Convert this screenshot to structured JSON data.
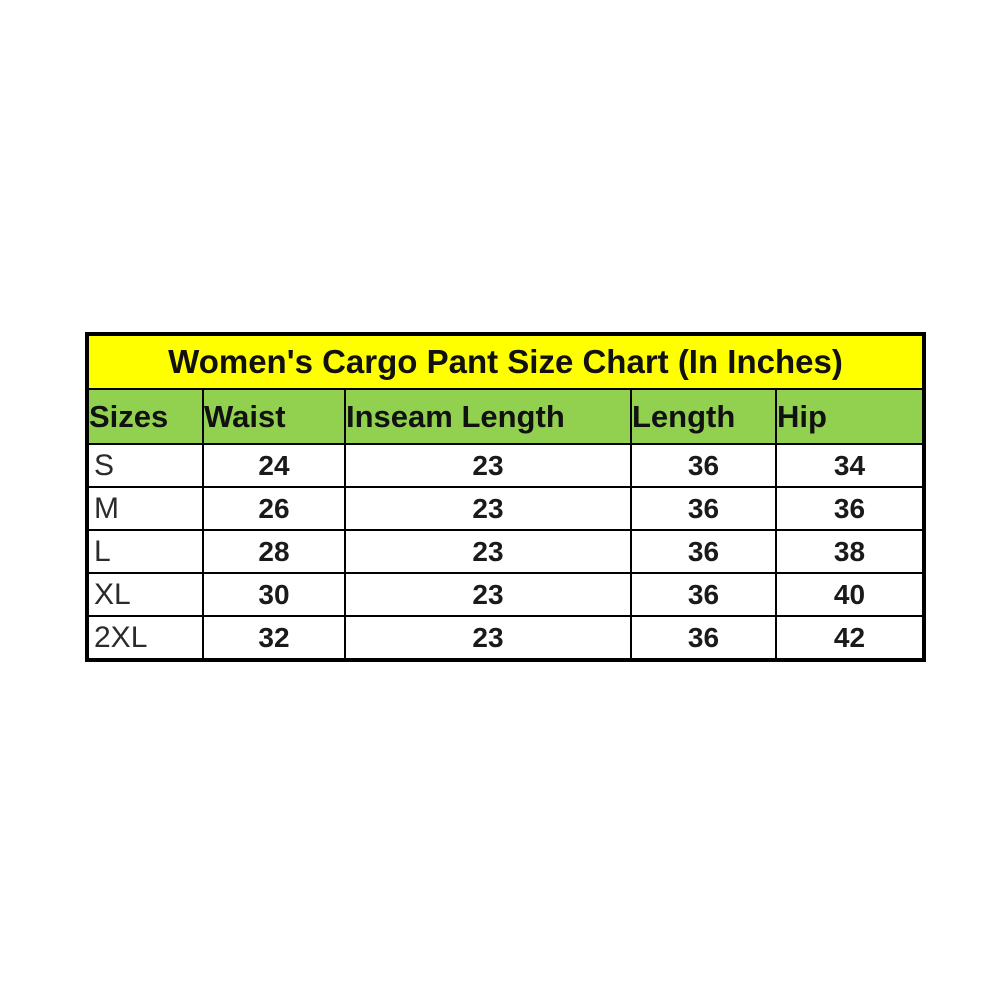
{
  "chart_data": {
    "type": "table",
    "title": "Women's Cargo Pant Size Chart (In Inches)",
    "columns": [
      "Sizes",
      "Waist",
      "Inseam Length",
      "Length",
      "Hip"
    ],
    "rows": [
      [
        "S",
        "24",
        "23",
        "36",
        "34"
      ],
      [
        "M",
        "26",
        "23",
        "36",
        "36"
      ],
      [
        "L",
        "28",
        "23",
        "36",
        "38"
      ],
      [
        "XL",
        "30",
        "23",
        "36",
        "40"
      ],
      [
        "2XL",
        "32",
        "23",
        "36",
        "42"
      ]
    ]
  },
  "table": {
    "title": "Women's Cargo Pant Size Chart (In Inches)",
    "columns": {
      "0": "Sizes",
      "1": "Waist",
      "2": "Inseam Length",
      "3": "Length",
      "4": "Hip"
    },
    "rows": {
      "0": {
        "size": "S",
        "waist": "24",
        "inseam": "23",
        "length": "36",
        "hip": "34"
      },
      "1": {
        "size": "M",
        "waist": "26",
        "inseam": "23",
        "length": "36",
        "hip": "36"
      },
      "2": {
        "size": "L",
        "waist": "28",
        "inseam": "23",
        "length": "36",
        "hip": "38"
      },
      "3": {
        "size": "XL",
        "waist": "30",
        "inseam": "23",
        "length": "36",
        "hip": "40"
      },
      "4": {
        "size": "2XL",
        "waist": "32",
        "inseam": "23",
        "length": "36",
        "hip": "42"
      }
    }
  },
  "colors": {
    "title_bg": "#ffff00",
    "header_bg": "#92d050",
    "cell_bg": "#ffffff",
    "border": "#000000",
    "text": "#111111"
  }
}
